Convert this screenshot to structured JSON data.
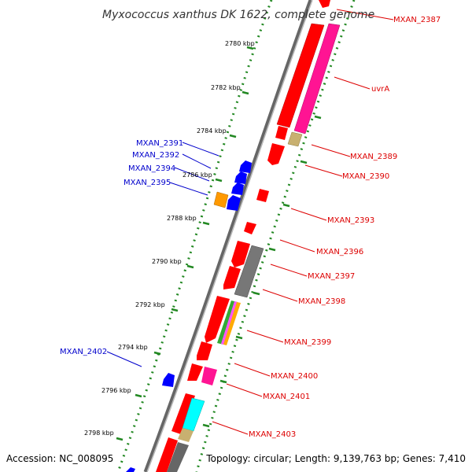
{
  "title": "Myxococcus xanthus DK 1622, complete genome",
  "footer": {
    "accession": "Accession: NC_008095",
    "topology": "Topology: circular; Length: 9,139,763 bp; Genes: 7,410"
  },
  "colors": {
    "forward_label": "#dd0000",
    "reverse_label": "#0000cc",
    "backbone": "#808080",
    "ticks": "#228822"
  },
  "ticks": [
    {
      "label": "2780 kbp"
    },
    {
      "label": "2782 kbp"
    },
    {
      "label": "2784 kbp"
    },
    {
      "label": "2786 kbp"
    },
    {
      "label": "2788 kbp"
    },
    {
      "label": "2790 kbp"
    },
    {
      "label": "2792 kbp"
    },
    {
      "label": "2794 kbp"
    },
    {
      "label": "2796 kbp"
    },
    {
      "label": "2798 kbp"
    }
  ],
  "forward_labels": [
    "MXAN_2387",
    "uvrA",
    "MXAN_2389",
    "MXAN_2390",
    "MXAN_2393",
    "MXAN_2396",
    "MXAN_2397",
    "MXAN_2398",
    "MXAN_2399",
    "MXAN_2400",
    "MXAN_2401",
    "MXAN_2403"
  ],
  "reverse_labels": [
    "MXAN_2391",
    "MXAN_2392",
    "MXAN_2394",
    "MXAN_2395",
    "MXAN_2402"
  ]
}
